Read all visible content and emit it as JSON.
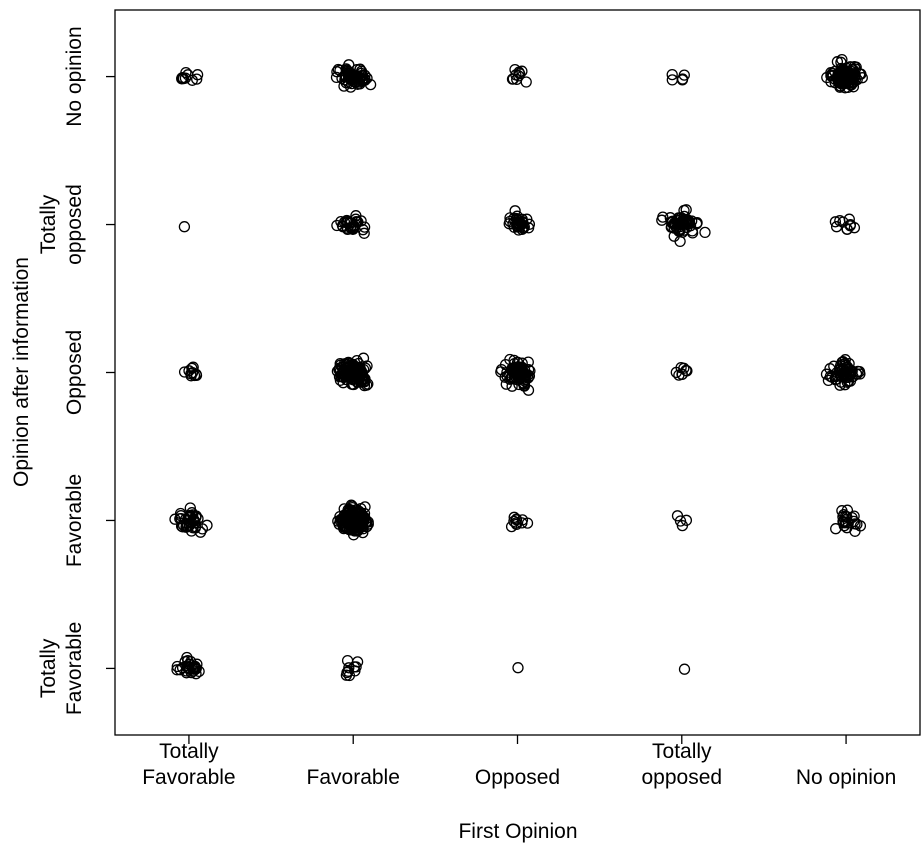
{
  "chart_data": {
    "type": "scatter",
    "title": "",
    "xlabel": "First Opinion",
    "ylabel": "Opinion after information",
    "categories": [
      "Totally Favorable",
      "Favorable",
      "Opposed",
      "Totally opposed",
      "No opinion"
    ],
    "x_tick_labels": [
      [
        "Totally",
        "Favorable"
      ],
      [
        "Favorable"
      ],
      [
        "Opposed"
      ],
      [
        "Totally",
        "opposed"
      ],
      [
        "No opinion"
      ]
    ],
    "y_tick_labels": [
      [
        "Totally",
        "Favorable"
      ],
      [
        "Favorable"
      ],
      [
        "Opposed"
      ],
      [
        "Totally",
        "opposed"
      ],
      [
        "No opinion"
      ]
    ],
    "xlim": [
      0.55,
      5.45
    ],
    "ylim": [
      0.55,
      5.45
    ],
    "jitter": "points jittered around integer category positions",
    "grid": false,
    "marker": "open circle",
    "counts": [
      [
        28,
        10,
        1,
        1,
        0
      ],
      [
        40,
        180,
        10,
        4,
        22
      ],
      [
        10,
        120,
        80,
        8,
        55
      ],
      [
        1,
        30,
        35,
        60,
        10
      ],
      [
        10,
        60,
        10,
        5,
        120
      ]
    ],
    "counts_note": "rows = opinion after information (Totally Favorable..No opinion), columns = first opinion (Totally Favorable..No opinion); approximate number of plotted points"
  }
}
